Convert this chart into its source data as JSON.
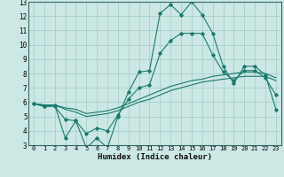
{
  "xlabel": "Humidex (Indice chaleur)",
  "x": [
    0,
    1,
    2,
    3,
    4,
    5,
    6,
    7,
    8,
    9,
    10,
    11,
    12,
    13,
    14,
    15,
    16,
    17,
    18,
    19,
    20,
    21,
    22,
    23
  ],
  "line1": [
    5.9,
    5.7,
    5.8,
    3.5,
    4.7,
    2.8,
    3.5,
    2.8,
    5.0,
    6.7,
    8.1,
    8.2,
    12.2,
    12.8,
    12.1,
    13.0,
    12.1,
    10.8,
    8.5,
    7.3,
    8.5,
    8.5,
    7.9,
    5.5
  ],
  "line2": [
    5.9,
    5.8,
    5.8,
    5.5,
    5.3,
    5.0,
    5.1,
    5.2,
    5.4,
    5.7,
    6.0,
    6.2,
    6.5,
    6.8,
    7.0,
    7.2,
    7.4,
    7.5,
    7.6,
    7.7,
    7.8,
    7.8,
    7.8,
    7.5
  ],
  "line3": [
    5.9,
    5.8,
    5.8,
    5.6,
    5.5,
    5.2,
    5.3,
    5.4,
    5.6,
    5.9,
    6.2,
    6.5,
    6.8,
    7.1,
    7.3,
    7.5,
    7.6,
    7.8,
    7.9,
    8.0,
    8.1,
    8.1,
    8.0,
    7.7
  ],
  "line4": [
    5.9,
    5.7,
    5.7,
    4.8,
    4.7,
    3.8,
    4.2,
    4.0,
    5.1,
    6.2,
    7.0,
    7.2,
    9.4,
    10.3,
    10.8,
    10.8,
    10.8,
    9.3,
    8.1,
    7.5,
    8.2,
    8.2,
    7.7,
    6.5
  ],
  "line_color": "#1a7a6e",
  "background_color": "#cce8e4",
  "grid_color": "#a8d0cc",
  "ylim": [
    3,
    13
  ],
  "xlim": [
    -0.5,
    23.5
  ],
  "yticks": [
    3,
    4,
    5,
    6,
    7,
    8,
    9,
    10,
    11,
    12,
    13
  ],
  "xticks": [
    0,
    1,
    2,
    3,
    4,
    5,
    6,
    7,
    8,
    9,
    10,
    11,
    12,
    13,
    14,
    15,
    16,
    17,
    18,
    19,
    20,
    21,
    22,
    23
  ]
}
